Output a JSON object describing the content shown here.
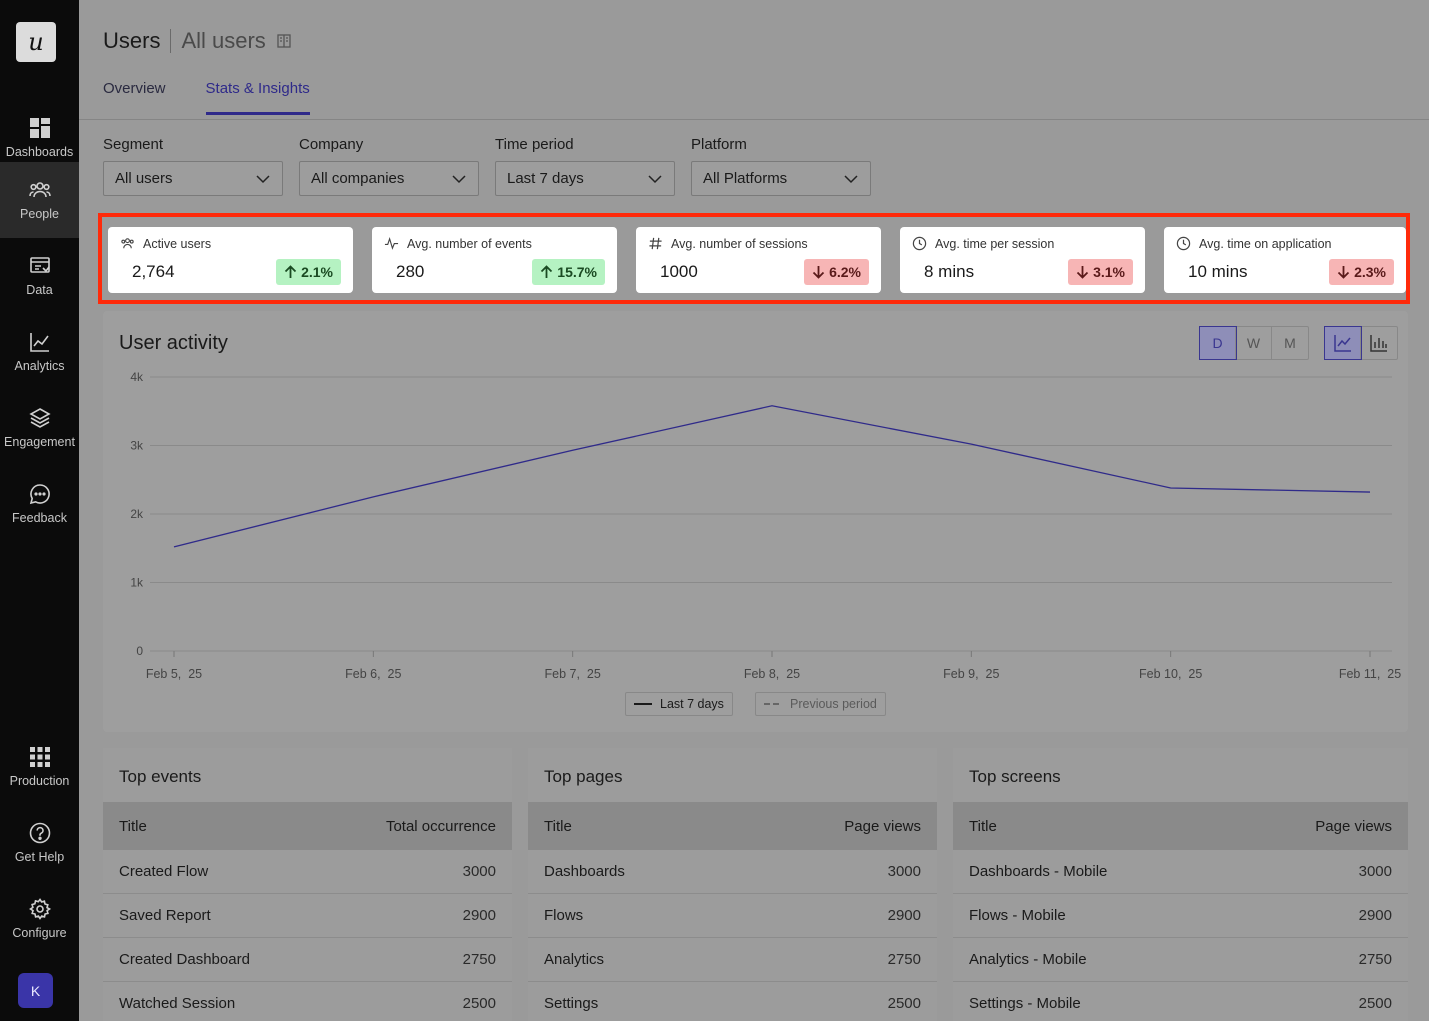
{
  "sidebar": {
    "logo": "u",
    "items": [
      {
        "label": "Dashboards",
        "icon": "dashboard-icon"
      },
      {
        "label": "People",
        "icon": "people-icon"
      },
      {
        "label": "Data",
        "icon": "data-icon"
      },
      {
        "label": "Analytics",
        "icon": "analytics-icon"
      },
      {
        "label": "Engagement",
        "icon": "layers-icon"
      },
      {
        "label": "Feedback",
        "icon": "chat-icon"
      },
      {
        "label": "Production",
        "icon": "grid-icon"
      },
      {
        "label": "Get Help",
        "icon": "help-icon"
      },
      {
        "label": "Configure",
        "icon": "gear-icon"
      }
    ],
    "avatar": "K"
  },
  "header": {
    "title": "Users",
    "subtitle": "All users"
  },
  "tabs": [
    {
      "label": "Overview"
    },
    {
      "label": "Stats & Insights"
    }
  ],
  "filters": [
    {
      "label": "Segment",
      "value": "All users"
    },
    {
      "label": "Company",
      "value": "All companies"
    },
    {
      "label": "Time period",
      "value": "Last 7 days"
    },
    {
      "label": "Platform",
      "value": "All Platforms"
    }
  ],
  "stats": [
    {
      "label": "Active users",
      "value": "2,764",
      "change": "2.1%",
      "direction": "up",
      "icon": "users-icon"
    },
    {
      "label": "Avg. number of events",
      "value": "280",
      "change": "15.7%",
      "direction": "up",
      "icon": "activity-icon"
    },
    {
      "label": "Avg. number of sessions",
      "value": "1000",
      "change": "6.2%",
      "direction": "down",
      "icon": "hash-icon"
    },
    {
      "label": "Avg. time per session",
      "value": "8 mins",
      "change": "3.1%",
      "direction": "down",
      "icon": "clock-icon"
    },
    {
      "label": "Avg. time on application",
      "value": "10 mins",
      "change": "2.3%",
      "direction": "down",
      "icon": "clock-icon"
    }
  ],
  "activity": {
    "title": "User activity",
    "granularity": [
      "D",
      "W",
      "M"
    ],
    "selected_granularity": "D",
    "legend": {
      "current": "Last 7 days",
      "previous": "Previous period"
    }
  },
  "chart_data": {
    "type": "line",
    "title": "User activity",
    "x": [
      "Feb 5,  25",
      "Feb 6,  25",
      "Feb 7,  25",
      "Feb 8,  25",
      "Feb 9,  25",
      "Feb 10,  25",
      "Feb 11,  25"
    ],
    "yticks": [
      "0",
      "1k",
      "2k",
      "3k",
      "4k"
    ],
    "ylim": [
      0,
      4000
    ],
    "series": [
      {
        "name": "Last 7 days",
        "values": [
          1520,
          2250,
          2930,
          3580,
          3020,
          2380,
          2320
        ],
        "color": "#2f2a8a"
      }
    ],
    "grid": true,
    "legend_position": "bottom"
  },
  "tables": [
    {
      "title": "Top events",
      "col1": "Title",
      "col2": "Total occurrence",
      "rows": [
        [
          "Created Flow",
          "3000"
        ],
        [
          "Saved Report",
          "2900"
        ],
        [
          "Created Dashboard",
          "2750"
        ],
        [
          "Watched Session",
          "2500"
        ]
      ]
    },
    {
      "title": "Top pages",
      "col1": "Title",
      "col2": "Page views",
      "rows": [
        [
          "Dashboards",
          "3000"
        ],
        [
          "Flows",
          "2900"
        ],
        [
          "Analytics",
          "2750"
        ],
        [
          "Settings",
          "2500"
        ]
      ]
    },
    {
      "title": "Top screens",
      "col1": "Title",
      "col2": "Page views",
      "rows": [
        [
          "Dashboards - Mobile",
          "3000"
        ],
        [
          "Flows - Mobile",
          "2900"
        ],
        [
          "Analytics - Mobile",
          "2750"
        ],
        [
          "Settings - Mobile",
          "2500"
        ]
      ]
    }
  ],
  "colors": {
    "accent": "#2f2a8a",
    "highlight": "#ff2a0a",
    "up": "#b5f2c2",
    "down": "#f7b5b5"
  }
}
